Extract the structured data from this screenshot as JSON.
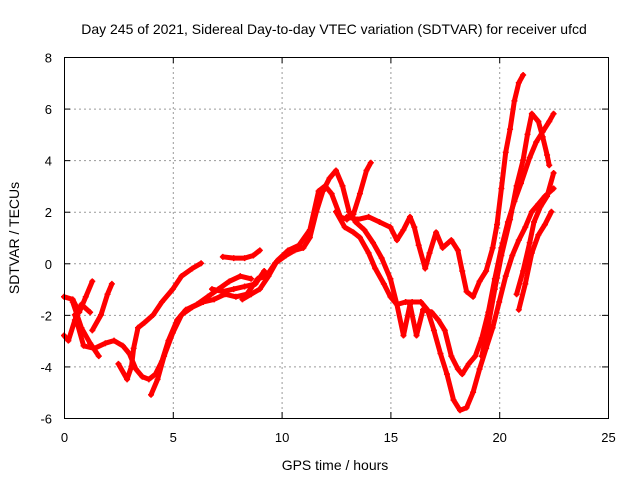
{
  "chart_data": {
    "type": "scatter",
    "title": "Day 245 of 2021, Sidereal Day-to-day VTEC variation (SDTVAR) for receiver ufcd",
    "xlabel": "GPS time / hours",
    "ylabel": "SDTVAR / TECUs",
    "xlim": [
      0,
      25
    ],
    "ylim": [
      -6,
      8
    ],
    "xticks": [
      "0",
      "5",
      "10",
      "15",
      "20",
      "25"
    ],
    "yticks": [
      "-6",
      "-4",
      "-2",
      "0",
      "2",
      "4",
      "6",
      "8"
    ],
    "grid": true,
    "marker": "+",
    "color": "#ff0000",
    "series": [
      {
        "points": [
          [
            0.0,
            -1.3
          ],
          [
            0.4,
            -1.4
          ],
          [
            0.7,
            -1.9
          ],
          [
            1.0,
            -1.3
          ],
          [
            1.3,
            -0.7
          ]
        ]
      },
      {
        "points": [
          [
            0.0,
            -2.8
          ],
          [
            0.2,
            -3.0
          ],
          [
            0.5,
            -2.2
          ],
          [
            0.8,
            -1.6
          ],
          [
            1.2,
            -1.9
          ]
        ]
      },
      {
        "points": [
          [
            0.4,
            -1.5
          ],
          [
            0.8,
            -2.5
          ],
          [
            1.2,
            -3.1
          ],
          [
            1.6,
            -3.6
          ]
        ]
      },
      {
        "points": [
          [
            0.5,
            -2.0
          ],
          [
            0.9,
            -3.2
          ],
          [
            1.4,
            -3.3
          ],
          [
            1.9,
            -3.1
          ],
          [
            2.3,
            -3.0
          ],
          [
            2.7,
            -3.2
          ],
          [
            3.0,
            -3.5
          ],
          [
            3.3,
            -4.1
          ],
          [
            3.6,
            -4.4
          ],
          [
            3.9,
            -4.5
          ],
          [
            4.2,
            -4.3
          ],
          [
            4.5,
            -3.8
          ],
          [
            4.8,
            -3.0
          ],
          [
            5.2,
            -2.2
          ],
          [
            5.6,
            -1.8
          ],
          [
            6.1,
            -1.6
          ],
          [
            6.6,
            -1.3
          ],
          [
            7.1,
            -1.0
          ],
          [
            7.6,
            -0.7
          ],
          [
            8.1,
            -0.5
          ],
          [
            8.6,
            -0.6
          ]
        ]
      },
      {
        "points": [
          [
            1.3,
            -2.6
          ],
          [
            1.7,
            -2.0
          ],
          [
            2.0,
            -1.2
          ],
          [
            2.2,
            -0.8
          ]
        ]
      },
      {
        "points": [
          [
            2.5,
            -3.9
          ],
          [
            2.9,
            -4.5
          ],
          [
            3.1,
            -4.0
          ],
          [
            3.2,
            -3.3
          ],
          [
            3.4,
            -2.5
          ],
          [
            3.7,
            -2.3
          ],
          [
            4.1,
            -2.0
          ],
          [
            4.5,
            -1.5
          ],
          [
            5.0,
            -1.0
          ],
          [
            5.4,
            -0.5
          ],
          [
            5.9,
            -0.2
          ],
          [
            6.3,
            0.0
          ]
        ]
      },
      {
        "points": [
          [
            4.0,
            -5.1
          ],
          [
            4.3,
            -4.5
          ],
          [
            4.6,
            -3.6
          ],
          [
            5.0,
            -2.7
          ],
          [
            5.4,
            -2.0
          ],
          [
            5.9,
            -1.7
          ],
          [
            6.4,
            -1.5
          ],
          [
            6.9,
            -1.4
          ],
          [
            7.4,
            -1.2
          ],
          [
            7.9,
            -1.3
          ],
          [
            8.4,
            -1.2
          ],
          [
            8.9,
            -0.6
          ],
          [
            9.3,
            -0.5
          ],
          [
            9.7,
            0.0
          ],
          [
            10.2,
            0.3
          ],
          [
            10.6,
            0.5
          ],
          [
            11.0,
            0.6
          ],
          [
            11.3,
            1.0
          ],
          [
            11.6,
            2.0
          ],
          [
            11.9,
            2.8
          ],
          [
            12.2,
            3.3
          ],
          [
            12.5,
            3.6
          ],
          [
            12.8,
            3.0
          ],
          [
            13.1,
            2.0
          ],
          [
            13.4,
            1.6
          ],
          [
            13.8,
            1.3
          ],
          [
            14.2,
            0.8
          ],
          [
            14.6,
            0.2
          ],
          [
            15.0,
            -0.6
          ],
          [
            15.3,
            -1.6
          ],
          [
            15.6,
            -2.8
          ],
          [
            15.9,
            -1.6
          ],
          [
            16.2,
            -2.8
          ],
          [
            16.5,
            -1.8
          ],
          [
            16.9,
            -1.9
          ],
          [
            17.2,
            -2.2
          ],
          [
            17.5,
            -2.6
          ],
          [
            17.8,
            -3.6
          ],
          [
            18.1,
            -4.1
          ],
          [
            18.3,
            -4.3
          ],
          [
            18.6,
            -3.9
          ],
          [
            18.9,
            -3.6
          ],
          [
            19.2,
            -2.9
          ],
          [
            19.5,
            -1.9
          ],
          [
            19.8,
            -0.6
          ],
          [
            20.1,
            0.6
          ],
          [
            20.4,
            1.6
          ],
          [
            20.7,
            2.4
          ],
          [
            21.0,
            3.1
          ],
          [
            21.4,
            4.1
          ],
          [
            21.7,
            4.7
          ],
          [
            22.0,
            5.1
          ],
          [
            22.3,
            5.5
          ],
          [
            22.5,
            5.8
          ]
        ]
      },
      {
        "points": [
          [
            7.3,
            0.25
          ],
          [
            7.8,
            0.2
          ],
          [
            8.3,
            0.2
          ],
          [
            8.7,
            0.3
          ],
          [
            9.0,
            0.5
          ]
        ]
      },
      {
        "points": [
          [
            6.8,
            -1.0
          ],
          [
            7.3,
            -1.1
          ],
          [
            7.8,
            -1.0
          ],
          [
            8.3,
            -0.9
          ],
          [
            8.8,
            -0.8
          ],
          [
            9.2,
            -0.3
          ]
        ]
      },
      {
        "points": [
          [
            8.2,
            -1.4
          ],
          [
            8.6,
            -1.2
          ],
          [
            9.0,
            -1.0
          ],
          [
            9.4,
            -0.5
          ],
          [
            9.8,
            0.1
          ],
          [
            10.3,
            0.5
          ],
          [
            10.8,
            0.7
          ],
          [
            11.3,
            1.3
          ],
          [
            11.7,
            2.8
          ],
          [
            12.0,
            3.0
          ],
          [
            12.3,
            2.7
          ],
          [
            12.7,
            1.8
          ],
          [
            13.0,
            1.7
          ],
          [
            13.3,
            1.9
          ],
          [
            13.6,
            2.7
          ],
          [
            13.9,
            3.6
          ],
          [
            14.1,
            3.9
          ]
        ]
      },
      {
        "points": [
          [
            13.0,
            1.8
          ],
          [
            13.5,
            1.7
          ],
          [
            14.0,
            1.8
          ],
          [
            14.5,
            1.6
          ],
          [
            15.0,
            1.4
          ],
          [
            15.3,
            0.9
          ],
          [
            15.6,
            1.3
          ],
          [
            15.9,
            1.8
          ],
          [
            16.1,
            1.4
          ],
          [
            16.3,
            0.7
          ],
          [
            16.6,
            -0.2
          ],
          [
            16.8,
            0.4
          ],
          [
            17.1,
            1.2
          ],
          [
            17.4,
            0.6
          ],
          [
            17.8,
            0.9
          ],
          [
            18.1,
            0.5
          ],
          [
            18.3,
            -0.3
          ],
          [
            18.5,
            -1.1
          ],
          [
            18.8,
            -1.3
          ],
          [
            19.1,
            -0.7
          ],
          [
            19.4,
            -0.3
          ],
          [
            19.7,
            0.6
          ],
          [
            19.9,
            1.5
          ],
          [
            20.1,
            2.9
          ],
          [
            20.3,
            4.3
          ],
          [
            20.5,
            5.2
          ],
          [
            20.7,
            6.3
          ],
          [
            20.9,
            7.0
          ],
          [
            21.1,
            7.3
          ]
        ]
      },
      {
        "points": [
          [
            12.5,
            2.0
          ],
          [
            12.9,
            1.4
          ],
          [
            13.3,
            1.2
          ],
          [
            13.6,
            1.0
          ],
          [
            14.0,
            0.4
          ],
          [
            14.3,
            -0.2
          ],
          [
            14.7,
            -0.8
          ],
          [
            15.0,
            -1.3
          ],
          [
            15.3,
            -1.6
          ],
          [
            15.7,
            -1.5
          ],
          [
            16.0,
            -1.5
          ],
          [
            16.4,
            -1.5
          ],
          [
            16.7,
            -1.8
          ],
          [
            17.0,
            -2.6
          ],
          [
            17.3,
            -3.5
          ],
          [
            17.6,
            -4.3
          ],
          [
            17.9,
            -5.3
          ],
          [
            18.2,
            -5.7
          ],
          [
            18.5,
            -5.6
          ],
          [
            18.8,
            -5.0
          ],
          [
            19.1,
            -4.1
          ],
          [
            19.4,
            -3.3
          ],
          [
            19.7,
            -2.5
          ],
          [
            20.0,
            -1.5
          ],
          [
            20.3,
            -0.5
          ],
          [
            20.6,
            0.3
          ],
          [
            20.9,
            0.9
          ],
          [
            21.2,
            1.4
          ],
          [
            21.5,
            2.0
          ],
          [
            21.8,
            2.3
          ],
          [
            22.1,
            2.6
          ],
          [
            22.5,
            2.9
          ]
        ]
      },
      {
        "points": [
          [
            19.2,
            -3.6
          ],
          [
            19.5,
            -2.4
          ],
          [
            19.8,
            -1.0
          ],
          [
            20.1,
            0.3
          ],
          [
            20.5,
            1.7
          ],
          [
            20.8,
            3.0
          ],
          [
            21.1,
            4.0
          ],
          [
            21.3,
            5.0
          ],
          [
            21.5,
            5.8
          ],
          [
            21.8,
            5.5
          ],
          [
            22.0,
            4.9
          ],
          [
            22.2,
            4.2
          ],
          [
            22.3,
            3.8
          ]
        ]
      },
      {
        "points": [
          [
            20.8,
            -1.2
          ],
          [
            21.1,
            -0.3
          ],
          [
            21.4,
            0.8
          ],
          [
            21.6,
            1.6
          ],
          [
            21.9,
            2.2
          ],
          [
            22.2,
            2.6
          ],
          [
            22.5,
            3.5
          ]
        ]
      },
      {
        "points": [
          [
            20.9,
            -1.8
          ],
          [
            21.2,
            -0.8
          ],
          [
            21.5,
            0.4
          ],
          [
            21.8,
            1.1
          ],
          [
            22.1,
            1.5
          ],
          [
            22.4,
            2.0
          ]
        ]
      }
    ]
  }
}
